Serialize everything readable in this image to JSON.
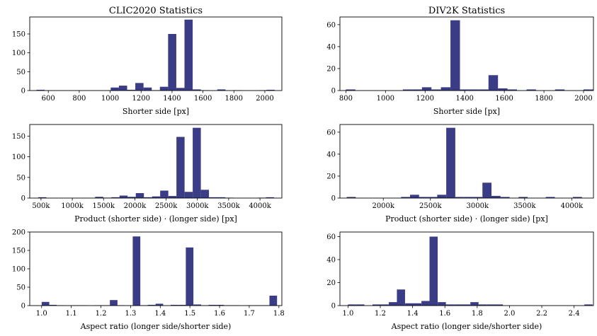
{
  "colors": {
    "bar": "#3b3c86"
  },
  "chart_data": [
    {
      "type": "bar",
      "title": "CLIC2020 Statistics",
      "xlabel": "Shorter side [px]",
      "ylabel": "",
      "xlim": [
        480,
        2110
      ],
      "ylim": [
        0,
        195
      ],
      "xticks": [
        600,
        800,
        1000,
        1200,
        1400,
        1600,
        1800,
        2000
      ],
      "xtick_labels": [
        "600",
        "800",
        "1000",
        "1200",
        "1400",
        "1600",
        "1800",
        "2000"
      ],
      "yticks": [
        0,
        50,
        100,
        150
      ],
      "ytick_labels": [
        "0",
        "50",
        "100",
        "150"
      ],
      "bin_width": 53,
      "x": [
        550,
        1030,
        1083,
        1136,
        1189,
        1242,
        1295,
        1348,
        1401,
        1454,
        1507,
        1560,
        1613,
        1719,
        1825,
        1984,
        2037
      ],
      "values": [
        2,
        8,
        13,
        2,
        20,
        8,
        1,
        10,
        150,
        7,
        188,
        3,
        1,
        3,
        1,
        1,
        2
      ]
    },
    {
      "type": "bar",
      "title": "DIV2K Statistics",
      "xlabel": "Shorter side [px]",
      "ylabel": "",
      "xlim": [
        770,
        2050
      ],
      "ylim": [
        0,
        67
      ],
      "xticks": [
        800,
        1000,
        1200,
        1400,
        1600,
        1800,
        2000
      ],
      "xtick_labels": [
        "800",
        "1000",
        "1200",
        "1400",
        "1600",
        "1800",
        "2000"
      ],
      "yticks": [
        0,
        20,
        40,
        60
      ],
      "ytick_labels": [
        "0",
        "20",
        "40",
        "60"
      ],
      "bin_width": 48,
      "x": [
        824,
        1112,
        1160,
        1208,
        1256,
        1304,
        1352,
        1400,
        1448,
        1496,
        1544,
        1592,
        1640,
        1736,
        1880,
        2024
      ],
      "values": [
        1,
        1,
        1,
        3,
        1,
        3,
        64,
        1,
        1,
        1,
        14,
        2,
        1,
        1,
        1,
        1
      ]
    },
    {
      "type": "bar",
      "title": "",
      "xlabel": "Product (shorter side) · (longer side) [px]",
      "ylabel": "",
      "xlim": [
        320000,
        4350000
      ],
      "ylim": [
        0,
        178
      ],
      "xticks": [
        500000,
        1000000,
        1500000,
        2000000,
        2500000,
        3000000,
        3500000,
        4000000
      ],
      "xtick_labels": [
        "500k",
        "1000k",
        "1500k",
        "2000k",
        "2500k",
        "3000k",
        "3500k",
        "4000k"
      ],
      "yticks": [
        0,
        50,
        100,
        150
      ],
      "ytick_labels": [
        "0",
        "50",
        "100",
        "150"
      ],
      "bin_width": 130000,
      "x": [
        520000,
        1430000,
        1560000,
        1690000,
        1820000,
        1950000,
        2080000,
        2210000,
        2340000,
        2470000,
        2600000,
        2730000,
        2860000,
        2990000,
        3120000,
        3250000,
        3380000,
        3510000,
        4030000,
        4160000
      ],
      "values": [
        2,
        3,
        1,
        2,
        6,
        3,
        12,
        2,
        4,
        18,
        5,
        148,
        15,
        170,
        20,
        2,
        2,
        1,
        1,
        2
      ]
    },
    {
      "type": "bar",
      "title": "",
      "xlabel": "Product (shorter side) · (longer side) [px]",
      "ylabel": "",
      "xlim": [
        1540000,
        4230000
      ],
      "ylim": [
        0,
        67
      ],
      "xticks": [
        2000000,
        2500000,
        3000000,
        3500000,
        4000000
      ],
      "xtick_labels": [
        "2000k",
        "2500k",
        "3000k",
        "3500k",
        "4000k"
      ],
      "yticks": [
        0,
        20,
        40,
        60
      ],
      "ytick_labels": [
        "0",
        "20",
        "40",
        "60"
      ],
      "bin_width": 96000,
      "x": [
        1660000,
        2236000,
        2332000,
        2428000,
        2524000,
        2620000,
        2716000,
        2812000,
        2908000,
        3004000,
        3100000,
        3196000,
        3292000,
        3484000,
        3772000,
        4060000
      ],
      "values": [
        1,
        1,
        3,
        1,
        1,
        3,
        64,
        1,
        1,
        1,
        14,
        2,
        1,
        1,
        1,
        1
      ]
    },
    {
      "type": "bar",
      "title": "",
      "xlabel": "Aspect ratio (longer side/shorter side)",
      "ylabel": "",
      "xlim": [
        0.96,
        1.81
      ],
      "ylim": [
        0,
        200
      ],
      "xticks": [
        1.0,
        1.1,
        1.2,
        1.3,
        1.4,
        1.5,
        1.6,
        1.7,
        1.8
      ],
      "xtick_labels": [
        "1.0",
        "1.1",
        "1.2",
        "1.3",
        "1.4",
        "1.5",
        "1.6",
        "1.7",
        "1.8"
      ],
      "yticks": [
        0,
        50,
        100,
        150,
        200
      ],
      "ytick_labels": [
        "0",
        "50",
        "100",
        "150",
        "200"
      ],
      "bin_width": 0.0256,
      "x": [
        1.013,
        1.038,
        1.064,
        1.115,
        1.141,
        1.192,
        1.218,
        1.243,
        1.269,
        1.32,
        1.346,
        1.371,
        1.397,
        1.448,
        1.474,
        1.499,
        1.525,
        1.55,
        1.576,
        1.602,
        1.627,
        1.653,
        1.704,
        1.73,
        1.755,
        1.781
      ],
      "values": [
        10,
        2,
        1,
        1,
        1,
        1,
        1,
        15,
        1,
        188,
        1,
        2,
        5,
        2,
        2,
        158,
        3,
        1,
        2,
        2,
        1,
        1,
        1,
        1,
        1,
        27
      ]
    },
    {
      "type": "bar",
      "title": "",
      "xlabel": "Aspect ratio (longer side/shorter side)",
      "ylabel": "",
      "xlim": [
        0.95,
        2.52
      ],
      "ylim": [
        0,
        64
      ],
      "xticks": [
        1.0,
        1.2,
        1.4,
        1.6,
        1.8,
        2.0,
        2.2,
        2.4
      ],
      "xtick_labels": [
        "1.0",
        "1.2",
        "1.4",
        "1.6",
        "1.8",
        "2.0",
        "2.2",
        "2.4"
      ],
      "yticks": [
        0,
        20,
        40,
        60
      ],
      "ytick_labels": [
        "0",
        "20",
        "40",
        "60"
      ],
      "bin_width": 0.0505,
      "x": [
        1.025,
        1.076,
        1.177,
        1.227,
        1.278,
        1.328,
        1.379,
        1.429,
        1.48,
        1.53,
        1.581,
        1.631,
        1.682,
        1.732,
        1.783,
        1.833,
        1.884,
        1.934,
        2.489
      ],
      "values": [
        1,
        1,
        1,
        1,
        3,
        14,
        2,
        2,
        4,
        60,
        3,
        1,
        1,
        1,
        3,
        1,
        1,
        1,
        1
      ]
    }
  ]
}
